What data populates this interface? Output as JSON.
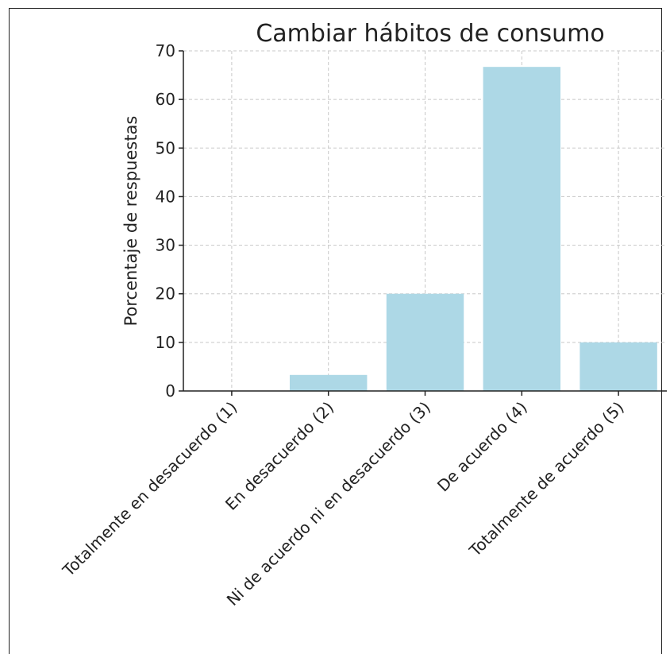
{
  "chart_data": {
    "type": "bar",
    "title": "Cambiar hábitos de consumo",
    "xlabel": "",
    "ylabel": "Porcentaje de respuestas",
    "categories": [
      "Totalmente en desacuerdo (1)",
      "En desacuerdo (2)",
      "Ni de acuerdo ni en desacuerdo (3)",
      "De acuerdo (4)",
      "Totalmente de acuerdo (5)"
    ],
    "values": [
      0,
      3.3,
      20,
      66.7,
      10
    ],
    "ylim": [
      0,
      70
    ],
    "yticks": [
      0,
      10,
      20,
      30,
      40,
      50,
      60,
      70
    ],
    "grid": true,
    "bar_color": "#add8e6"
  }
}
